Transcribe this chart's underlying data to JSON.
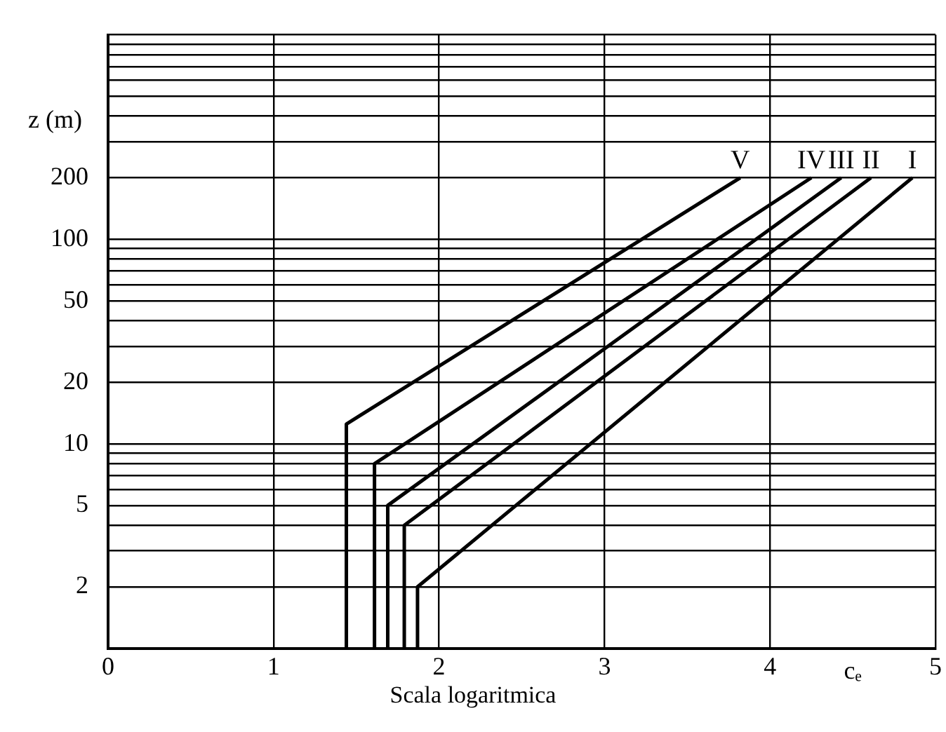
{
  "chart_data": {
    "type": "line",
    "xlabel": "cₑ",
    "ylabel": "z (m)",
    "annotations": [
      "Scala logaritmica"
    ],
    "log": "y",
    "grid": true,
    "legend": false,
    "marker": "none",
    "line_style": "solid",
    "xlim": [
      0,
      5
    ],
    "xticks": [
      0,
      1,
      2,
      3,
      4,
      5
    ],
    "ylim": [
      1,
      1000
    ],
    "yticks": [
      {
        "value": 2,
        "label": "2"
      },
      {
        "value": 3,
        "label": null
      },
      {
        "value": 4,
        "label": null
      },
      {
        "value": 5,
        "label": "5"
      },
      {
        "value": 6,
        "label": null
      },
      {
        "value": 7,
        "label": null
      },
      {
        "value": 8,
        "label": null
      },
      {
        "value": 9,
        "label": null
      },
      {
        "value": 10,
        "label": "10"
      },
      {
        "value": 20,
        "label": "20"
      },
      {
        "value": 30,
        "label": null
      },
      {
        "value": 40,
        "label": null
      },
      {
        "value": 50,
        "label": "50"
      },
      {
        "value": 60,
        "label": null
      },
      {
        "value": 70,
        "label": null
      },
      {
        "value": 80,
        "label": null
      },
      {
        "value": 90,
        "label": null
      },
      {
        "value": 100,
        "label": "100"
      },
      {
        "value": 200,
        "label": "200"
      },
      {
        "value": 300,
        "label": null
      },
      {
        "value": 400,
        "label": null
      },
      {
        "value": 500,
        "label": null
      },
      {
        "value": 600,
        "label": null
      },
      {
        "value": 700,
        "label": null
      },
      {
        "value": 800,
        "label": null
      },
      {
        "value": 900,
        "label": null
      },
      {
        "value": 1000,
        "label": null
      }
    ],
    "series": [
      {
        "name": "I",
        "color": "#000000",
        "x": [
          1.87,
          1.87,
          4.86
        ],
        "values": [
          1,
          2,
          200
        ]
      },
      {
        "name": "II",
        "color": "#000000",
        "x": [
          1.79,
          1.79,
          4.61
        ],
        "values": [
          1,
          4,
          200
        ]
      },
      {
        "name": "III",
        "color": "#000000",
        "x": [
          1.69,
          1.69,
          4.43
        ],
        "values": [
          1,
          5,
          200
        ]
      },
      {
        "name": "IV",
        "color": "#000000",
        "x": [
          1.61,
          1.61,
          4.25
        ],
        "values": [
          1,
          8,
          200
        ]
      },
      {
        "name": "V",
        "color": "#000000",
        "x": [
          1.44,
          1.44,
          3.82
        ],
        "values": [
          1,
          12.5,
          200
        ]
      }
    ]
  }
}
